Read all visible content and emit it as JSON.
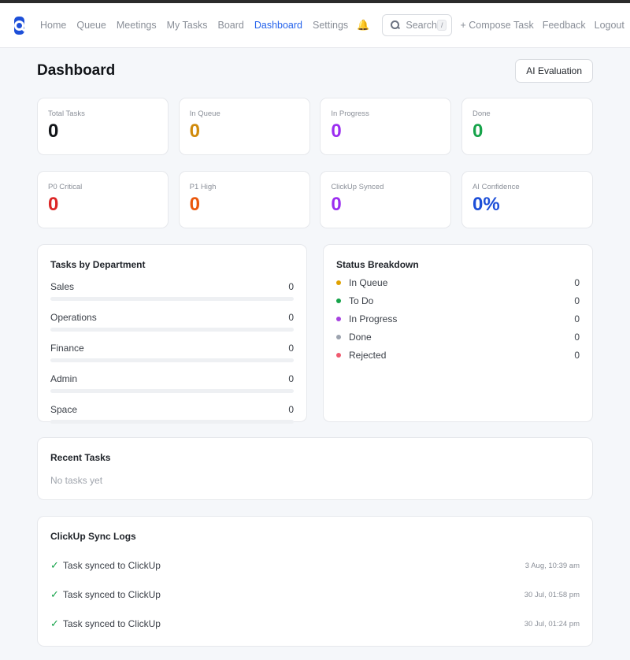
{
  "nav": {
    "links": [
      {
        "label": "Home",
        "active": false
      },
      {
        "label": "Queue",
        "active": false
      },
      {
        "label": "Meetings",
        "active": false
      },
      {
        "label": "My Tasks",
        "active": false
      },
      {
        "label": "Board",
        "active": false
      },
      {
        "label": "Dashboard",
        "active": true
      },
      {
        "label": "Settings",
        "active": false
      }
    ],
    "search_placeholder": "Search",
    "search_shortcut": "/",
    "compose_label": "+ Compose Task",
    "feedback_label": "Feedback",
    "logout_label": "Logout",
    "icons": [
      "app-logo",
      "bell-icon",
      "search-icon"
    ]
  },
  "header": {
    "title": "Dashboard",
    "ai_button": "AI Evaluation"
  },
  "stats_row1": [
    {
      "label": "Total Tasks",
      "value": "0",
      "color": "#111418"
    },
    {
      "label": "In Queue",
      "value": "0",
      "color": "#d08a0b"
    },
    {
      "label": "In Progress",
      "value": "0",
      "color": "#9b2df0"
    },
    {
      "label": "Done",
      "value": "0",
      "color": "#16a34a"
    }
  ],
  "stats_row2": [
    {
      "label": "P0 Critical",
      "value": "0",
      "color": "#dc2626"
    },
    {
      "label": "P1 High",
      "value": "0",
      "color": "#ea580c"
    },
    {
      "label": "ClickUp Synced",
      "value": "0",
      "color": "#9b2df0"
    },
    {
      "label": "AI Confidence",
      "value": "0%",
      "color": "#1d4fd8"
    }
  ],
  "departments": {
    "title": "Tasks by Department",
    "items": [
      {
        "name": "Sales",
        "count": "0",
        "fraction": 0
      },
      {
        "name": "Operations",
        "count": "0",
        "fraction": 0
      },
      {
        "name": "Finance",
        "count": "0",
        "fraction": 0
      },
      {
        "name": "Admin",
        "count": "0",
        "fraction": 0
      },
      {
        "name": "Space",
        "count": "0",
        "fraction": 0
      }
    ]
  },
  "status": {
    "title": "Status Breakdown",
    "items": [
      {
        "name": "In Queue",
        "count": "0",
        "color": "#e0a100"
      },
      {
        "name": "To Do",
        "count": "0",
        "color": "#16a34a"
      },
      {
        "name": "In Progress",
        "count": "0",
        "color": "#a742e0"
      },
      {
        "name": "Done",
        "count": "0",
        "color": "#9ca3af"
      },
      {
        "name": "Rejected",
        "count": "0",
        "color": "#ef5a6f"
      }
    ]
  },
  "recent": {
    "title": "Recent Tasks",
    "empty": "No tasks yet"
  },
  "logs": {
    "title": "ClickUp Sync Logs",
    "items": [
      {
        "text": "Task synced to ClickUp",
        "time": "3 Aug, 10:39 am"
      },
      {
        "text": "Task synced to ClickUp",
        "time": "30 Jul, 01:58 pm"
      },
      {
        "text": "Task synced to ClickUp",
        "time": "30 Jul, 01:24 pm"
      }
    ]
  }
}
